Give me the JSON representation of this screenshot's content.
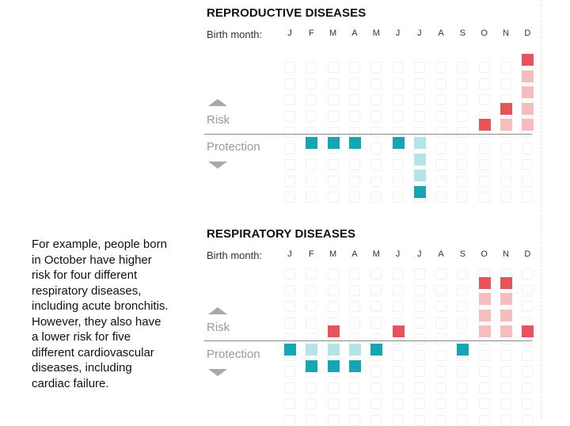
{
  "note": "For example, people born in October have higher risk for four different respiratory diseases, including acute bronchitis. However, they also have a lower risk for five different cardiovascular diseases, including cardiac failure.",
  "legend": {
    "birth_month_label": "Birth month:",
    "risk_label": "Risk",
    "protection_label": "Protection"
  },
  "months": [
    "J",
    "F",
    "M",
    "A",
    "M",
    "J",
    "J",
    "A",
    "S",
    "O",
    "N",
    "D"
  ],
  "colors": {
    "risk_strong": "#e8535a",
    "risk_light": "#f7bcbc",
    "protection_strong": "#14a6b3",
    "protection_light": "#b5e4e8",
    "ghost_border": "#f1f1f1",
    "axis": "#8a8a8a",
    "muted_text": "#9a9a9a"
  },
  "chart_data": [
    {
      "type": "bar",
      "title": "REPRODUCTIVE DISEASES",
      "categories": [
        "J",
        "F",
        "M",
        "A",
        "M",
        "J",
        "J",
        "A",
        "S",
        "O",
        "N",
        "D"
      ],
      "series": [
        {
          "values": [
            0,
            -1,
            -1,
            -1,
            0,
            -1,
            -4,
            0,
            0,
            1,
            2,
            5
          ]
        }
      ],
      "strong_counts": [
        0,
        1,
        1,
        1,
        0,
        1,
        1,
        0,
        0,
        1,
        1,
        1
      ]
    },
    {
      "type": "bar",
      "title": "RESPIRATORY DISEASES",
      "categories": [
        "J",
        "F",
        "M",
        "A",
        "M",
        "J",
        "J",
        "A",
        "S",
        "O",
        "N",
        "D"
      ],
      "series": [
        {
          "name": "Risk",
          "values": [
            0,
            0,
            1,
            0,
            0,
            1,
            0,
            0,
            0,
            4,
            4,
            1
          ]
        },
        {
          "name": "Protection",
          "values": [
            1,
            2,
            2,
            2,
            1,
            0,
            0,
            0,
            1,
            0,
            0,
            0
          ]
        }
      ],
      "strong_counts": {
        "risk": [
          0,
          0,
          1,
          0,
          0,
          1,
          0,
          0,
          0,
          1,
          1,
          1
        ],
        "protection": [
          1,
          1,
          1,
          1,
          1,
          0,
          0,
          0,
          1,
          0,
          0,
          0
        ]
      }
    }
  ]
}
